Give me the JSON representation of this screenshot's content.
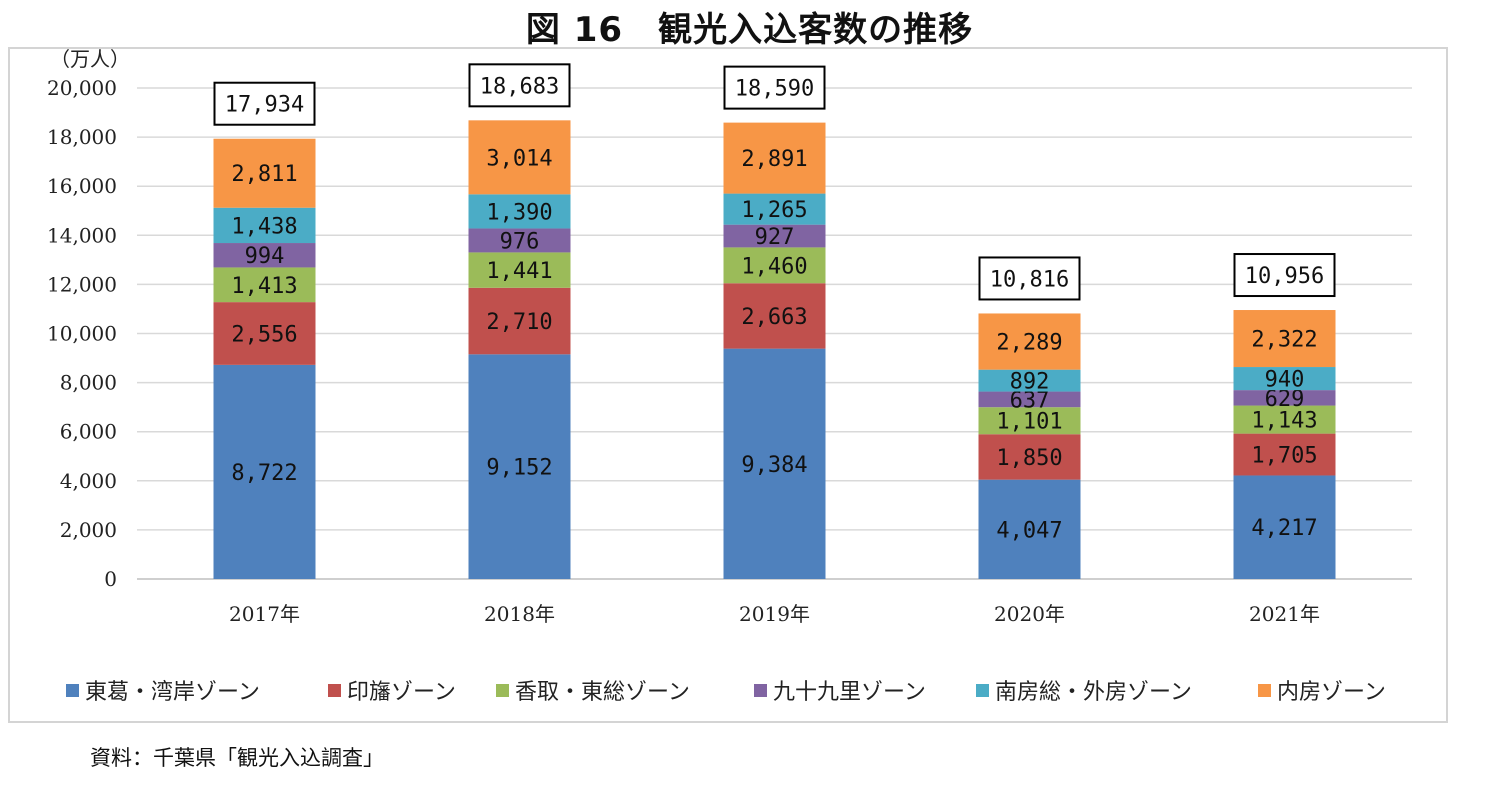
{
  "title": "図 16　観光入込客数の推移",
  "source": "資料：千葉県「観光入込調査」",
  "chart_data": {
    "type": "bar",
    "stacked": true,
    "unit_label": "（万人）",
    "categories": [
      "2017年",
      "2018年",
      "2019年",
      "2020年",
      "2021年"
    ],
    "ylim": [
      0,
      20000
    ],
    "yticks": [
      0,
      2000,
      4000,
      6000,
      8000,
      10000,
      12000,
      14000,
      16000,
      18000,
      20000
    ],
    "ytick_labels": [
      "0",
      "2,000",
      "4,000",
      "6,000",
      "8,000",
      "10,000",
      "12,000",
      "14,000",
      "16,000",
      "18,000",
      "20,000"
    ],
    "grid": true,
    "legend_position": "bottom",
    "series": [
      {
        "name": "東葛・湾岸ゾーン",
        "color": "#4f81bd",
        "values": [
          8722,
          9152,
          9384,
          4047,
          4217
        ],
        "labels": [
          "8,722",
          "9,152",
          "9,384",
          "4,047",
          "4,217"
        ]
      },
      {
        "name": "印旛ゾーン",
        "color": "#c0504d",
        "values": [
          2556,
          2710,
          2663,
          1850,
          1705
        ],
        "labels": [
          "2,556",
          "2,710",
          "2,663",
          "1,850",
          "1,705"
        ]
      },
      {
        "name": "香取・東総ゾーン",
        "color": "#9bbb59",
        "values": [
          1413,
          1441,
          1460,
          1101,
          1143
        ],
        "labels": [
          "1,413",
          "1,441",
          "1,460",
          "1,101",
          "1,143"
        ]
      },
      {
        "name": "九十九里ゾーン",
        "color": "#8064a2",
        "values": [
          994,
          976,
          927,
          637,
          629
        ],
        "labels": [
          "994",
          "976",
          "927",
          "637",
          "629"
        ]
      },
      {
        "name": "南房総・外房ゾーン",
        "color": "#4bacc6",
        "values": [
          1438,
          1390,
          1265,
          892,
          940
        ],
        "labels": [
          "1,438",
          "1,390",
          "1,265",
          "892",
          "940"
        ]
      },
      {
        "name": "内房ゾーン",
        "color": "#f79646",
        "values": [
          2811,
          3014,
          2891,
          2289,
          2322
        ],
        "labels": [
          "2,811",
          "3,014",
          "2,891",
          "2,289",
          "2,322"
        ]
      }
    ],
    "totals": [
      17934,
      18683,
      18590,
      10816,
      10956
    ],
    "total_labels": [
      "17,934",
      "18,683",
      "18,590",
      "10,816",
      "10,956"
    ]
  }
}
